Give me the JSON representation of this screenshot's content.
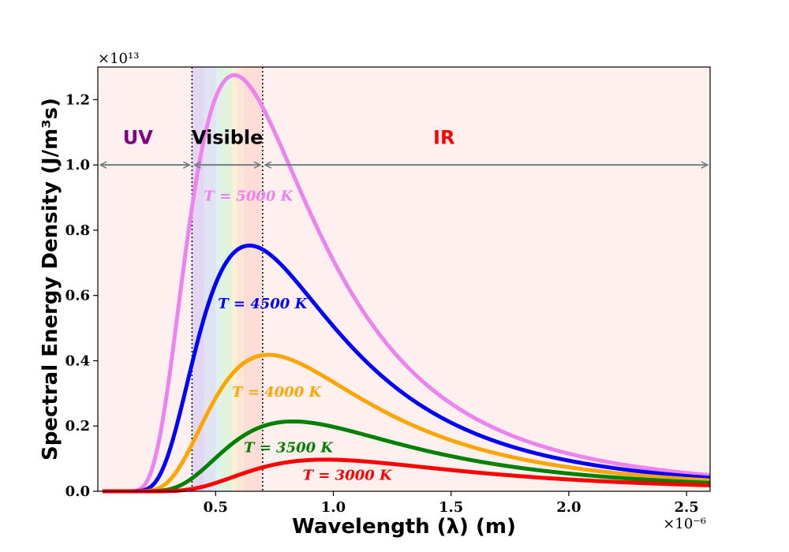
{
  "chart_data": {
    "type": "line",
    "title": "",
    "xlabel": "Wavelength (λ) (m)",
    "ylabel": "Spectral Energy Density (J/m³s)",
    "x_unit": "m",
    "xlim": [
      0.0,
      2.6
    ],
    "ylim": [
      0.0,
      1.3
    ],
    "x_scale_label": "×10⁻⁶",
    "y_scale_label": "×10¹³",
    "x_ticks": [
      {
        "value": 0.5,
        "label": "0.5"
      },
      {
        "value": 1.0,
        "label": "1.0"
      },
      {
        "value": 1.5,
        "label": "1.5"
      },
      {
        "value": 2.0,
        "label": "2.0"
      },
      {
        "value": 2.5,
        "label": "2.5"
      }
    ],
    "y_ticks": [
      {
        "value": 0.0,
        "label": "0.0"
      },
      {
        "value": 0.2,
        "label": "0.2"
      },
      {
        "value": 0.4,
        "label": "0.4"
      },
      {
        "value": 0.6,
        "label": "0.6"
      },
      {
        "value": 0.8,
        "label": "0.8"
      },
      {
        "value": 1.0,
        "label": "1.0"
      },
      {
        "value": 1.2,
        "label": "1.2"
      }
    ],
    "regions": [
      {
        "name": "UV",
        "label": "UV",
        "from": 0.0,
        "to": 0.4,
        "color": "#800080",
        "arrow_y": 1.0
      },
      {
        "name": "Visible",
        "label": "Visible",
        "from": 0.4,
        "to": 0.7,
        "color": "#000000",
        "arrow_y": 1.0
      },
      {
        "name": "IR",
        "label": "IR",
        "from": 0.7,
        "to": 2.6,
        "color": "#ff0000",
        "arrow_y": 1.0
      }
    ],
    "region_boundaries": [
      0.4,
      0.7
    ],
    "arrow_color": "#708080",
    "background_color": "#fdf0ef",
    "visible_bands": [
      {
        "from": 0.4,
        "to": 0.45,
        "color": "#8a7dff"
      },
      {
        "from": 0.45,
        "to": 0.5,
        "color": "#7db8ff"
      },
      {
        "from": 0.5,
        "to": 0.52,
        "color": "#6ff2ff"
      },
      {
        "from": 0.52,
        "to": 0.57,
        "color": "#7dff9a"
      },
      {
        "from": 0.57,
        "to": 0.59,
        "color": "#fff07d"
      },
      {
        "from": 0.59,
        "to": 0.62,
        "color": "#ffc47d"
      },
      {
        "from": 0.62,
        "to": 0.7,
        "color": "#ff9a8a"
      }
    ],
    "series": [
      {
        "name": "T = 5000 K",
        "temperature": 5000,
        "color": "#ee82ee",
        "peak": {
          "x": 0.58,
          "y": 1.275
        },
        "label_at": {
          "x": 0.45,
          "y": 0.89
        }
      },
      {
        "name": "T = 4500 K",
        "temperature": 4500,
        "color": "#0000ff",
        "peak": {
          "x": 0.644,
          "y": 0.753
        },
        "label_at": {
          "x": 0.51,
          "y": 0.56
        }
      },
      {
        "name": "T = 4000 K",
        "temperature": 4000,
        "color": "#ffa500",
        "peak": {
          "x": 0.724,
          "y": 0.418
        },
        "label_at": {
          "x": 0.57,
          "y": 0.29
        }
      },
      {
        "name": "T = 3500 K",
        "temperature": 3500,
        "color": "#008000",
        "peak": {
          "x": 0.828,
          "y": 0.214
        },
        "label_at": {
          "x": 0.62,
          "y": 0.12
        }
      },
      {
        "name": "T = 3000 K",
        "temperature": 3000,
        "color": "#ff0000",
        "peak": {
          "x": 0.966,
          "y": 0.097
        },
        "label_at": {
          "x": 0.87,
          "y": 0.035
        }
      }
    ]
  }
}
